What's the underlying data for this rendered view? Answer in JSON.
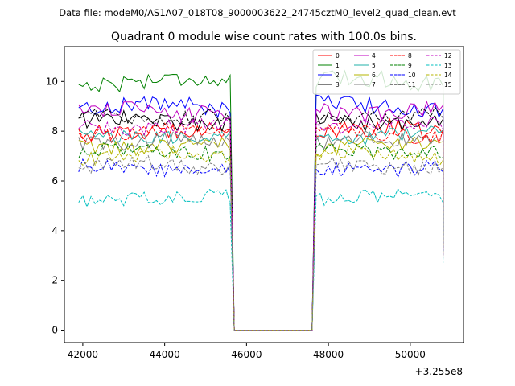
{
  "header": {
    "datafile": "Data file: modeM0/AS1A07_018T08_9000003622_24745cztM0_level2_quad_clean.evt"
  },
  "chart_data": {
    "type": "line",
    "title": "Quadrant 0 module wise count rates with 100.0s bins.",
    "xlabel": "",
    "ylabel": "",
    "offset_label": "+3.255e8",
    "xlim": [
      41550,
      51300
    ],
    "ylim": [
      -0.5,
      11.4
    ],
    "x_ticks": [
      42000,
      44000,
      46000,
      48000,
      50000
    ],
    "x_tick_labels": [
      "42000",
      "44000",
      "46000",
      "48000",
      "50000"
    ],
    "y_ticks": [
      0,
      2,
      4,
      6,
      8,
      10
    ],
    "y_tick_labels": [
      "0",
      "2",
      "4",
      "6",
      "8",
      "10"
    ],
    "segments": [
      {
        "x_start": 41900,
        "x_end": 45600,
        "step": 100
      },
      {
        "x_start": 47600,
        "x_end": 50800,
        "step": 100
      }
    ],
    "gap": {
      "x_start": 45700,
      "x_end": 47600,
      "value": 0
    },
    "end_values": [
      3.0,
      3.9,
      4.0,
      3.5,
      3.2,
      3.6,
      3.4,
      2.9,
      3.3,
      3.1,
      3.2,
      3.8,
      3.0,
      2.7,
      3.3,
      4.1
    ],
    "legend_position": "top-right",
    "series": [
      {
        "name": "0",
        "color": "#ff0000",
        "dash": false,
        "mean": 8.0,
        "amp": 0.35
      },
      {
        "name": "1",
        "color": "#008000",
        "dash": false,
        "mean": 10.0,
        "amp": 0.35
      },
      {
        "name": "2",
        "color": "#0000ff",
        "dash": false,
        "mean": 9.0,
        "amp": 0.35
      },
      {
        "name": "3",
        "color": "#000000",
        "dash": false,
        "mean": 8.4,
        "amp": 0.35
      },
      {
        "name": "4",
        "color": "#c000c0",
        "dash": false,
        "mean": 8.8,
        "amp": 0.35
      },
      {
        "name": "5",
        "color": "#20b2aa",
        "dash": false,
        "mean": 7.8,
        "amp": 0.3
      },
      {
        "name": "6",
        "color": "#b5b500",
        "dash": false,
        "mean": 7.4,
        "amp": 0.3
      },
      {
        "name": "7",
        "color": "#808080",
        "dash": false,
        "mean": 7.6,
        "amp": 0.3
      },
      {
        "name": "8",
        "color": "#ff0000",
        "dash": true,
        "mean": 7.9,
        "amp": 0.3
      },
      {
        "name": "9",
        "color": "#008000",
        "dash": true,
        "mean": 7.2,
        "amp": 0.3
      },
      {
        "name": "10",
        "color": "#0000ff",
        "dash": true,
        "mean": 6.5,
        "amp": 0.3
      },
      {
        "name": "11",
        "color": "#000000",
        "dash": true,
        "mean": 8.6,
        "amp": 0.3
      },
      {
        "name": "12",
        "color": "#c000c0",
        "dash": true,
        "mean": 8.2,
        "amp": 0.3
      },
      {
        "name": "13",
        "color": "#00bfbf",
        "dash": true,
        "mean": 5.3,
        "amp": 0.3
      },
      {
        "name": "14",
        "color": "#b5b500",
        "dash": true,
        "mean": 7.0,
        "amp": 0.3
      },
      {
        "name": "15",
        "color": "#808080",
        "dash": true,
        "mean": 6.6,
        "amp": 0.3
      }
    ]
  }
}
